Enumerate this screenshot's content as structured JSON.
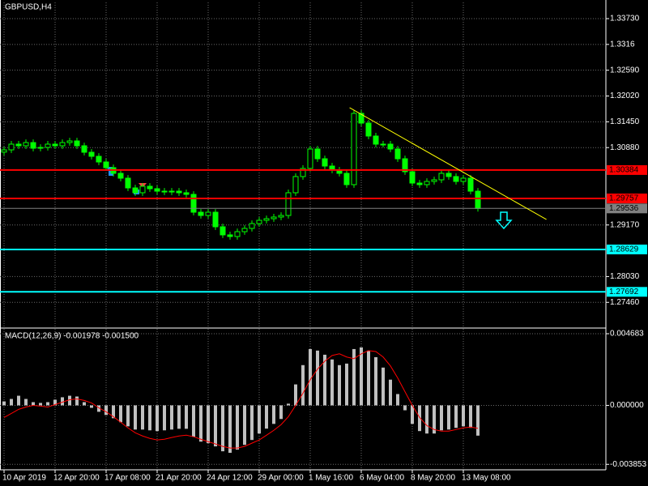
{
  "chart_data": [
    {
      "type": "candlestick",
      "title": "GBPUSD,H4",
      "color": "#00ff00",
      "open": [
        1.3078,
        1.3083,
        1.30956,
        1.3092,
        1.30991,
        1.30866,
        1.30884,
        1.30956,
        1.3092,
        1.30991,
        1.31027,
        1.3092,
        1.30777,
        1.30687,
        1.30562,
        1.30436,
        1.30311,
        1.30204,
        1.29989,
        1.29882,
        1.30025,
        1.29971,
        1.29917,
        1.29899,
        1.29917,
        1.29882,
        1.29846,
        1.29452,
        1.2938,
        1.29452,
        1.2913,
        1.28951,
        1.28915,
        1.29022,
        1.29094,
        1.29201,
        1.29273,
        1.29309,
        1.29345,
        1.2938,
        1.29882,
        1.3024,
        1.30419,
        1.30848,
        1.30633,
        1.30472,
        1.30383,
        1.30311,
        1.30061,
        1.31636,
        1.31421,
        1.31135,
        1.30956,
        1.30956,
        1.30848,
        1.30633,
        1.30347,
        1.30096,
        1.30061,
        1.30132,
        1.30168,
        1.30311,
        1.3024,
        1.30132,
        1.30204,
        1.29917
      ],
      "high": [
        1.309,
        1.31026,
        1.31026,
        1.31061,
        1.31061,
        1.30954,
        1.31026,
        1.31026,
        1.31061,
        1.31097,
        1.31097,
        1.3099,
        1.30847,
        1.30757,
        1.30632,
        1.30506,
        1.30381,
        1.30274,
        1.30059,
        1.30095,
        1.30095,
        1.30041,
        1.29987,
        1.29987,
        1.29987,
        1.29952,
        1.29916,
        1.29522,
        1.29522,
        1.29522,
        1.292,
        1.29021,
        1.29092,
        1.29164,
        1.29271,
        1.29343,
        1.29379,
        1.29415,
        1.2945,
        1.29952,
        1.3031,
        1.30489,
        1.30918,
        1.30918,
        1.30703,
        1.30542,
        1.30453,
        1.30381,
        1.31706,
        1.31706,
        1.31491,
        1.31205,
        1.31026,
        1.31026,
        1.30918,
        1.30703,
        1.30417,
        1.30166,
        1.30202,
        1.30238,
        1.30381,
        1.30381,
        1.3031,
        1.30274,
        1.30274,
        1.29987
      ],
      "low": [
        1.3071,
        1.3076,
        1.3085,
        1.3085,
        1.30796,
        1.30796,
        1.30814,
        1.3085,
        1.3085,
        1.30921,
        1.3085,
        1.30707,
        1.30617,
        1.30492,
        1.30366,
        1.30241,
        1.30134,
        1.29919,
        1.29812,
        1.29812,
        1.29901,
        1.29847,
        1.29829,
        1.29829,
        1.29812,
        1.29776,
        1.29382,
        1.2931,
        1.2931,
        1.2906,
        1.28881,
        1.28845,
        1.28845,
        1.28952,
        1.29024,
        1.29131,
        1.29203,
        1.29239,
        1.29275,
        1.2931,
        1.29812,
        1.3017,
        1.30349,
        1.30563,
        1.30402,
        1.30313,
        1.30241,
        1.29991,
        1.29991,
        1.31351,
        1.31065,
        1.30886,
        1.30886,
        1.30778,
        1.30563,
        1.30277,
        1.30026,
        1.29991,
        1.29991,
        1.30062,
        1.30098,
        1.3017,
        1.30062,
        1.30062,
        1.29847,
        1.29466
      ],
      "close": [
        1.3083,
        1.30956,
        1.3092,
        1.30991,
        1.30866,
        1.30884,
        1.30956,
        1.3092,
        1.30991,
        1.31027,
        1.3092,
        1.30777,
        1.30687,
        1.30562,
        1.30436,
        1.30311,
        1.30204,
        1.29989,
        1.29882,
        1.30025,
        1.29971,
        1.29917,
        1.29899,
        1.29917,
        1.29882,
        1.29846,
        1.29452,
        1.2938,
        1.29452,
        1.2913,
        1.28951,
        1.28915,
        1.29022,
        1.29094,
        1.29201,
        1.29273,
        1.29309,
        1.29345,
        1.2938,
        1.29882,
        1.3024,
        1.30419,
        1.30848,
        1.30633,
        1.30472,
        1.30383,
        1.30311,
        1.30061,
        1.31636,
        1.31421,
        1.31135,
        1.30956,
        1.30956,
        1.30848,
        1.30633,
        1.30347,
        1.30096,
        1.30061,
        1.30132,
        1.30168,
        1.30311,
        1.3024,
        1.30132,
        1.30204,
        1.29917,
        1.29536
      ],
      "ylim": [
        1.26892,
        1.34088
      ],
      "yticks": [
        {
          "value": 1.3373,
          "label": "1.33730"
        },
        1.3316,
        {
          "value": 1.3259,
          "label": "1.32590"
        },
        {
          "value": 1.3202,
          "label": "1.32020"
        },
        {
          "value": 1.3145,
          "label": "1.31450"
        },
        {
          "value": 1.3088,
          "label": "1.30880"
        },
        {
          "value": 1.2917,
          "label": "1.29170"
        },
        {
          "value": 1.2803,
          "label": "1.28030"
        },
        {
          "value": 1.2746,
          "label": "1.27460"
        }
      ],
      "grid": true,
      "levels": [
        {
          "value": 1.30384,
          "color": "#ff0000"
        },
        {
          "value": 1.29757,
          "color": "#ff0000"
        },
        {
          "value": 1.29536,
          "color": "#808080"
        },
        {
          "value": 1.28629,
          "color": "#00ffff"
        },
        {
          "value": 1.27692,
          "color": "#00ffff"
        }
      ],
      "trendline": {
        "x": [
          47.4,
          74.4
        ],
        "y": [
          1.31761,
          1.29291
        ],
        "color": "#ffff00"
      }
    },
    {
      "type": "macd",
      "title": "MACD(12,26,9) -0.001978 -0.001500",
      "categories": [
        "10 Apr 2019",
        null,
        null,
        null,
        null,
        null,
        null,
        "12 Apr 20:00",
        null,
        null,
        null,
        null,
        null,
        null,
        "17 Apr 08:00",
        null,
        null,
        null,
        null,
        null,
        null,
        "21 Apr 20:00",
        null,
        null,
        null,
        null,
        null,
        null,
        "24 Apr 12:00",
        null,
        null,
        null,
        null,
        null,
        null,
        "29 Apr 00:00",
        null,
        null,
        null,
        null,
        null,
        null,
        "1 May 16:00",
        null,
        null,
        null,
        null,
        null,
        null,
        "6 May 04:00",
        null,
        null,
        null,
        null,
        null,
        null,
        "8 May 20:00",
        null,
        null,
        null,
        null,
        null,
        null,
        "13 May 08:00",
        null,
        null
      ],
      "series": [
        {
          "type": "bar",
          "color": "#c0c0c0",
          "values": [
            0.00026,
            0.00042,
            0.00063,
            0.00042,
            0.00021,
            0.00016,
            0.00021,
            0.00037,
            0.00053,
            0.00063,
            0.00058,
            0.00021,
            -0.00016,
            -0.00042,
            -0.00063,
            -0.00084,
            -0.0011,
            -0.00137,
            -0.00158,
            -0.00158,
            -0.00163,
            -0.00168,
            -0.00163,
            -0.00158,
            -0.00153,
            -0.00153,
            -0.00205,
            -0.00237,
            -0.00247,
            -0.00268,
            -0.003,
            -0.0031,
            -0.00289,
            -0.00258,
            -0.00226,
            -0.00184,
            -0.00152,
            -0.00121,
            -0.00089,
            0.00011,
            0.00137,
            0.00263,
            0.00368,
            0.00358,
            0.00331,
            0.003,
            0.00263,
            0.00273,
            0.00368,
            0.00379,
            0.00358,
            0.00315,
            0.00247,
            0.00168,
            0.00074,
            -0.00032,
            -0.00121,
            -0.00168,
            -0.00184,
            -0.00184,
            -0.00163,
            -0.00158,
            -0.00147,
            -0.00137,
            -0.00147,
            -0.001978
          ]
        },
        {
          "type": "line",
          "color": "#ff0000",
          "values": [
            -0.00079,
            -0.00053,
            -0.00026,
            -0.00011,
            0.0,
            -5e-05,
            -0.00011,
            5e-05,
            0.00021,
            0.00037,
            0.00042,
            0.00032,
            0.00016,
            -0.00016,
            -0.00042,
            -0.00074,
            -0.0011,
            -0.00147,
            -0.00179,
            -0.002,
            -0.00216,
            -0.00226,
            -0.00221,
            -0.0021,
            -0.002,
            -0.00195,
            -0.00205,
            -0.00221,
            -0.00237,
            -0.00252,
            -0.00268,
            -0.00279,
            -0.00279,
            -0.00268,
            -0.00247,
            -0.00226,
            -0.00195,
            -0.00163,
            -0.00126,
            -0.00074,
            0.0,
            0.00079,
            0.00168,
            0.00237,
            0.00289,
            0.00326,
            0.00337,
            0.00316,
            0.00305,
            0.00337,
            0.00358,
            0.00352,
            0.00316,
            0.00258,
            0.00179,
            0.00089,
            0.0,
            -0.00079,
            -0.00132,
            -0.00158,
            -0.00168,
            -0.00168,
            -0.00158,
            -0.00147,
            -0.00142,
            -0.0015
          ]
        }
      ],
      "ylim": [
        -0.00421,
        0.005
      ],
      "yticks": [
        0.004683,
        {
          "value": 0,
          "label": "0.000000"
        },
        -0.003853
      ],
      "grid": true
    }
  ]
}
